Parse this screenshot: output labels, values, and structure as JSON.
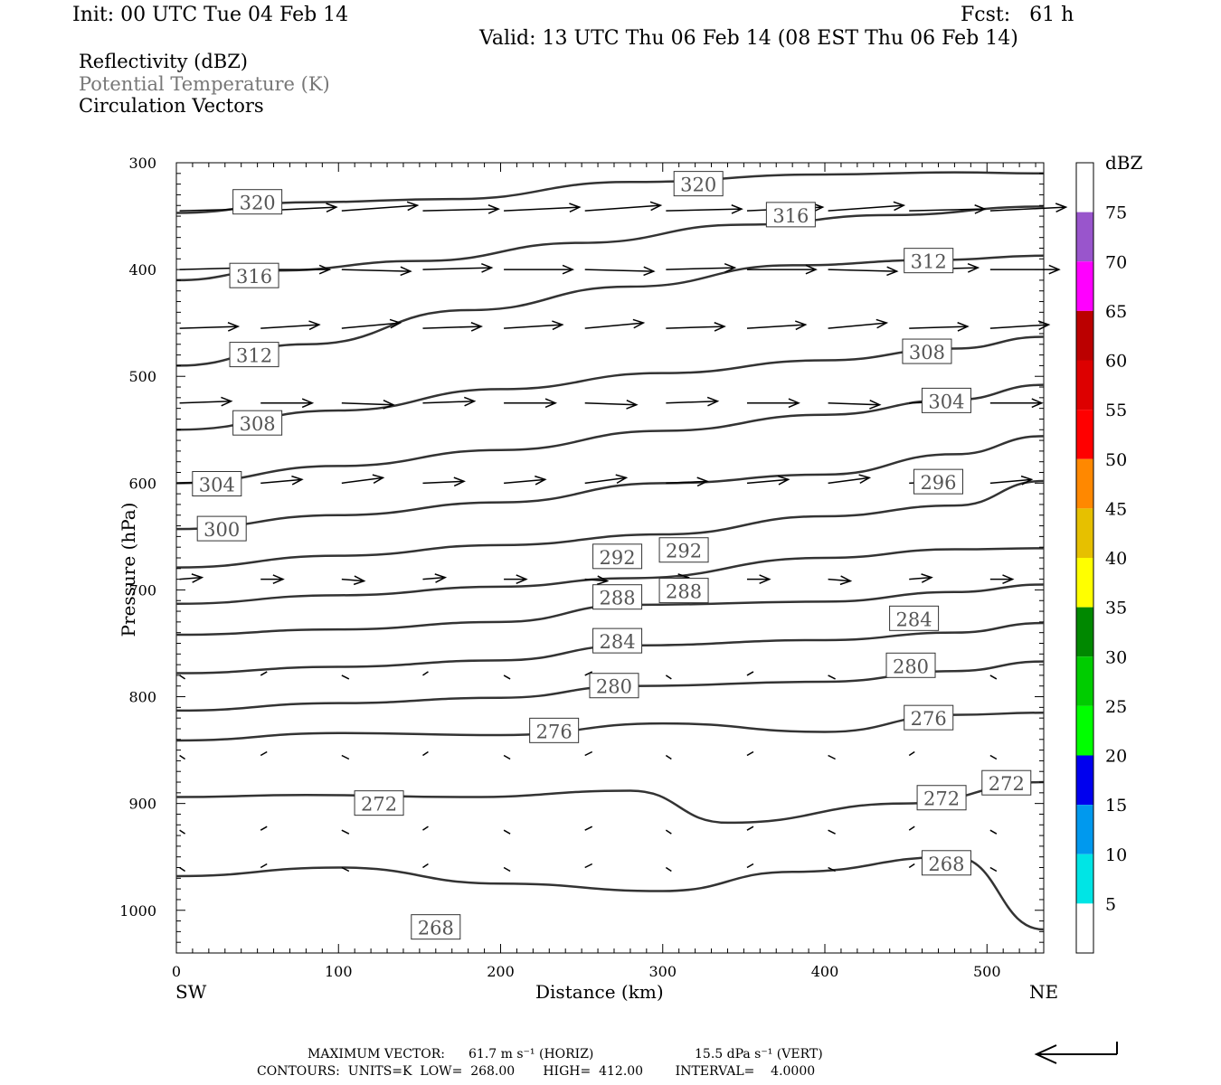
{
  "header": {
    "init": "Init: 00 UTC Tue 04 Feb 14",
    "fcst": "Fcst:   61 h",
    "valid": "Valid: 13 UTC Thu 06 Feb 14 (08 EST Thu 06 Feb 14)"
  },
  "legend": {
    "reflectivity": "Reflectivity (dBZ)",
    "theta": "Potential Temperature (K)",
    "vectors": "Circulation Vectors"
  },
  "footer": {
    "line1_label": "MAXIMUM VECTOR:",
    "line1_horiz": "61.7 m s⁻¹ (HORIZ)",
    "line1_vert": "15.5 dPa s⁻¹ (VERT)",
    "line2": "CONTOURS:  UNITS=K  LOW=  268.00       HIGH=  412.00        INTERVAL=    4.0000"
  },
  "colors": {
    "contour": "#333333",
    "frame": "#000000",
    "theta_text": "#777777"
  },
  "chart_data": {
    "type": "cross-section",
    "xlabel": "Distance (km)",
    "ylabel": "Pressure (hPa)",
    "xlim": [
      0,
      535
    ],
    "ylim": [
      1040,
      300
    ],
    "xticks": [
      0,
      100,
      200,
      300,
      400,
      500
    ],
    "yticks": [
      300,
      400,
      500,
      600,
      700,
      800,
      900,
      1000
    ],
    "x_endpoints": {
      "left": "SW",
      "right": "NE"
    },
    "colorbar": {
      "title": "dBZ",
      "levels": [
        5,
        10,
        15,
        20,
        25,
        30,
        35,
        40,
        45,
        50,
        55,
        60,
        65,
        70,
        75
      ],
      "colors": [
        "#ffffff",
        "#00e5e5",
        "#0099ee",
        "#0000ee",
        "#00ff00",
        "#00cc00",
        "#008800",
        "#ffff00",
        "#e6c000",
        "#ff8800",
        "#ff0000",
        "#dd0000",
        "#bb0000",
        "#ff00ff",
        "#9955cc",
        "#ffffff"
      ]
    },
    "contours": [
      {
        "level": 320,
        "points": [
          [
            0,
            347
          ],
          [
            80,
            337
          ],
          [
            170,
            334
          ],
          [
            280,
            318
          ],
          [
            400,
            311
          ],
          [
            480,
            309
          ],
          [
            535,
            310
          ]
        ],
        "labels": [
          [
            50,
            337
          ],
          [
            322,
            320
          ]
        ]
      },
      {
        "level": 316,
        "points": [
          [
            0,
            410
          ],
          [
            60,
            401
          ],
          [
            150,
            392
          ],
          [
            250,
            375
          ],
          [
            350,
            358
          ],
          [
            440,
            349
          ],
          [
            535,
            341
          ]
        ],
        "labels": [
          [
            48,
            406
          ],
          [
            379,
            349
          ]
        ]
      },
      {
        "level": 312,
        "points": [
          [
            0,
            490
          ],
          [
            80,
            470
          ],
          [
            180,
            438
          ],
          [
            280,
            416
          ],
          [
            380,
            396
          ],
          [
            470,
            391
          ],
          [
            535,
            387
          ]
        ],
        "labels": [
          [
            48,
            480
          ],
          [
            464,
            392
          ]
        ]
      },
      {
        "level": 308,
        "points": [
          [
            0,
            550
          ],
          [
            100,
            532
          ],
          [
            200,
            512
          ],
          [
            300,
            497
          ],
          [
            400,
            485
          ],
          [
            480,
            474
          ],
          [
            535,
            463
          ]
        ],
        "labels": [
          [
            50,
            544
          ],
          [
            463,
            477
          ]
        ]
      },
      {
        "level": 304,
        "points": [
          [
            0,
            600
          ],
          [
            100,
            584
          ],
          [
            200,
            569
          ],
          [
            300,
            551
          ],
          [
            400,
            536
          ],
          [
            480,
            522
          ],
          [
            535,
            508
          ]
        ],
        "labels": [
          [
            25,
            601
          ],
          [
            475,
            523
          ]
        ]
      },
      {
        "level": 300,
        "points": [
          [
            0,
            643
          ],
          [
            100,
            630
          ],
          [
            200,
            618
          ],
          [
            300,
            600
          ],
          [
            400,
            592
          ],
          [
            480,
            573
          ],
          [
            535,
            556
          ]
        ],
        "labels": [
          [
            28,
            643
          ]
        ]
      },
      {
        "level": 296,
        "points": [
          [
            0,
            679
          ],
          [
            100,
            668
          ],
          [
            200,
            658
          ],
          [
            300,
            648
          ],
          [
            400,
            631
          ],
          [
            480,
            621
          ],
          [
            535,
            598
          ]
        ],
        "labels": [
          [
            470,
            599
          ]
        ]
      },
      {
        "level": 292,
        "points": [
          [
            0,
            713
          ],
          [
            100,
            705
          ],
          [
            200,
            697
          ],
          [
            280,
            689
          ],
          [
            400,
            670
          ],
          [
            480,
            662
          ],
          [
            535,
            661
          ]
        ],
        "labels": [
          [
            272,
            669
          ],
          [
            313,
            663
          ]
        ]
      },
      {
        "level": 288,
        "points": [
          [
            0,
            742
          ],
          [
            100,
            737
          ],
          [
            200,
            730
          ],
          [
            280,
            714
          ],
          [
            400,
            711
          ],
          [
            480,
            702
          ],
          [
            535,
            695
          ]
        ],
        "labels": [
          [
            272,
            707
          ],
          [
            313,
            701
          ]
        ]
      },
      {
        "level": 284,
        "points": [
          [
            0,
            778
          ],
          [
            100,
            772
          ],
          [
            200,
            766
          ],
          [
            280,
            752
          ],
          [
            400,
            747
          ],
          [
            480,
            740
          ],
          [
            535,
            731
          ]
        ],
        "labels": [
          [
            272,
            748
          ],
          [
            455,
            727
          ]
        ]
      },
      {
        "level": 280,
        "points": [
          [
            0,
            813
          ],
          [
            100,
            806
          ],
          [
            200,
            801
          ],
          [
            280,
            790
          ],
          [
            400,
            786
          ],
          [
            480,
            776
          ],
          [
            535,
            767
          ]
        ],
        "labels": [
          [
            270,
            790
          ],
          [
            453,
            771
          ]
        ]
      },
      {
        "level": 276,
        "points": [
          [
            0,
            841
          ],
          [
            100,
            834
          ],
          [
            200,
            836
          ],
          [
            300,
            825
          ],
          [
            400,
            833
          ],
          [
            480,
            817
          ],
          [
            535,
            815
          ]
        ],
        "labels": [
          [
            233,
            832
          ],
          [
            464,
            820
          ]
        ]
      },
      {
        "level": 272,
        "points": [
          [
            0,
            894
          ],
          [
            80,
            892
          ],
          [
            180,
            894
          ],
          [
            280,
            888
          ],
          [
            340,
            918
          ],
          [
            450,
            900
          ],
          [
            535,
            880
          ]
        ],
        "labels": [
          [
            125,
            900
          ],
          [
            472,
            895
          ],
          [
            512,
            881
          ]
        ]
      },
      {
        "level": 268,
        "points": [
          [
            0,
            968
          ],
          [
            100,
            960
          ],
          [
            200,
            975
          ],
          [
            300,
            982
          ],
          [
            380,
            964
          ],
          [
            480,
            950
          ],
          [
            535,
            1018
          ]
        ],
        "labels": [
          [
            160,
            1016
          ],
          [
            475,
            956
          ]
        ]
      }
    ],
    "vectors_sample": {
      "description": "wind vectors: strong westerly aloft, weak near surface",
      "levels_hPa": [
        345,
        400,
        455,
        525,
        600,
        690,
        780,
        855,
        925,
        960
      ]
    },
    "extra_ticks": [
      "SW",
      "NE"
    ]
  }
}
